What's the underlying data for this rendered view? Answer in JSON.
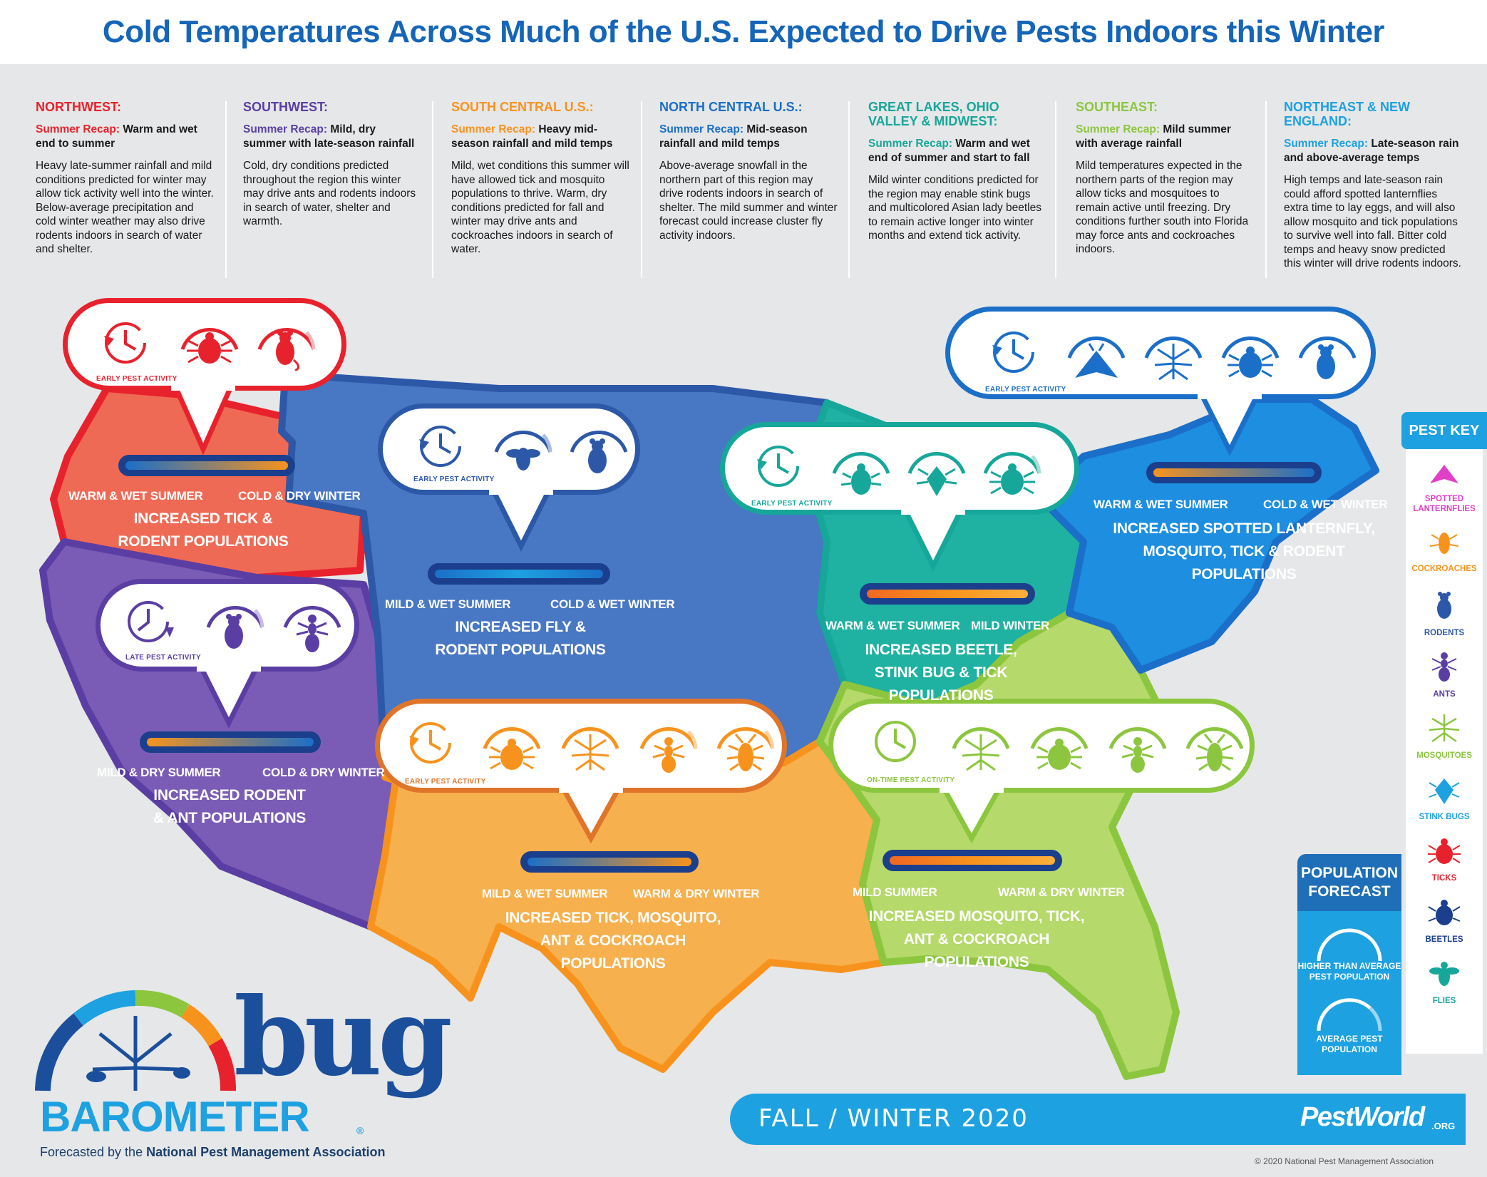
{
  "title": "Cold Temperatures Across Much of the U.S. Expected to Drive Pests Indoors this Winter",
  "colors": {
    "northwest": "#e8222d",
    "southwest": "#5b3ea3",
    "south_central": "#f7931d",
    "north_central": "#2d58a8",
    "great_lakes": "#17a79a",
    "southeast": "#8cc63f",
    "northeast": "#1b6fc8",
    "title_blue": "#1565b8",
    "key_blue": "#1da1e0"
  },
  "regions": [
    {
      "name": "NORTHWEST:",
      "recap_label": "Summer Recap:",
      "recap": "Warm and wet end to summer",
      "desc": "Heavy late-summer rainfall and mild conditions predicted for winter may allow tick activity well into the winter. Below-average precipitation and cold winter weather may also drive rodents indoors in search of water and shelter."
    },
    {
      "name": "SOUTHWEST:",
      "recap_label": "Summer Recap:",
      "recap": "Mild, dry summer with late-season rainfall",
      "desc": "Cold, dry conditions predicted throughout the region this winter may drive ants and rodents indoors in search of water, shelter and warmth."
    },
    {
      "name": "SOUTH CENTRAL U.S.:",
      "recap_label": "Summer Recap:",
      "recap": "Heavy mid-season rainfall and mild temps",
      "desc": "Mild, wet conditions this summer will have allowed tick and mosquito populations to thrive. Warm, dry conditions predicted for fall and winter may drive ants and cockroaches indoors in search of water."
    },
    {
      "name": "NORTH CENTRAL U.S.:",
      "recap_label": "Summer Recap:",
      "recap": "Mid-season rainfall and mild temps",
      "desc": "Above-average snowfall in the northern part of this region may drive rodents indoors in search of shelter. The mild summer and winter forecast could increase cluster fly activity indoors."
    },
    {
      "name": "GREAT LAKES, OHIO VALLEY & MIDWEST:",
      "recap_label": "Summer Recap:",
      "recap": "Warm and wet end of summer and start to fall",
      "desc": "Mild winter conditions predicted for the region may enable stink bugs and multicolored Asian lady beetles to remain active longer into winter months and extend tick activity."
    },
    {
      "name": "SOUTHEAST:",
      "recap_label": "Summer Recap:",
      "recap": "Mild summer with average rainfall",
      "desc": "Mild temperatures expected in the northern parts of the region may allow ticks and mosquitoes to remain active until freezing. Dry conditions further south into Florida may force ants and cockroaches indoors."
    },
    {
      "name": "NORTHEAST & NEW ENGLAND:",
      "recap_label": "Summer Recap:",
      "recap": "Late-season rain and above-average temps",
      "desc": "High temps and late-season rain could afford spotted lanternflies extra time to lay eggs, and will also allow mosquito and tick populations to survive well into fall. Bitter cold temps and heavy snow predicted this winter will drive rodents indoors."
    }
  ],
  "map": {
    "northwest": {
      "activity": "EARLY PEST ACTIVITY",
      "summer": "WARM & WET SUMMER",
      "winter": "COLD & DRY WINTER",
      "result1": "INCREASED TICK &",
      "result2": "RODENT POPULATIONS",
      "pests": [
        "tick",
        "rodent"
      ]
    },
    "southwest": {
      "activity": "LATE PEST ACTIVITY",
      "summer": "MILD & DRY SUMMER",
      "winter": "COLD & DRY WINTER",
      "result1": "INCREASED RODENT",
      "result2": "& ANT POPULATIONS",
      "pests": [
        "rodent",
        "ant"
      ]
    },
    "north_central": {
      "activity": "EARLY PEST ACTIVITY",
      "summer": "MILD & WET SUMMER",
      "winter": "COLD & WET WINTER",
      "result1": "INCREASED FLY &",
      "result2": "RODENT POPULATIONS",
      "pests": [
        "fly",
        "rodent"
      ]
    },
    "great_lakes": {
      "activity": "EARLY PEST ACTIVITY",
      "summer": "WARM & WET SUMMER",
      "winter": "MILD WINTER",
      "result1": "INCREASED BEETLE,",
      "result2": "STINK BUG & TICK POPULATIONS",
      "pests": [
        "beetle",
        "stink bug",
        "tick"
      ]
    },
    "northeast": {
      "activity": "EARLY PEST ACTIVITY",
      "summer": "WARM & WET SUMMER",
      "winter": "COLD & WET WINTER",
      "result1": "INCREASED SPOTTED LANTERNFLY,",
      "result2": "MOSQUITO, TICK & RODENT POPULATIONS",
      "pests": [
        "spotted lanternfly",
        "mosquito",
        "tick",
        "rodent"
      ]
    },
    "south_central": {
      "activity": "EARLY PEST ACTIVITY",
      "summer": "MILD & WET SUMMER",
      "winter": "WARM & DRY WINTER",
      "result1": "INCREASED TICK, MOSQUITO,",
      "result2": "ANT & COCKROACH POPULATIONS",
      "pests": [
        "tick",
        "mosquito",
        "ant",
        "cockroach"
      ]
    },
    "southeast": {
      "activity": "ON-TIME PEST ACTIVITY",
      "summer": "MILD SUMMER",
      "winter": "WARM & DRY WINTER",
      "result1": "INCREASED MOSQUITO, TICK,",
      "result2": "ANT & COCKROACH POPULATIONS",
      "pests": [
        "mosquito",
        "tick",
        "ant",
        "cockroach"
      ]
    }
  },
  "pest_key": {
    "title": "PEST KEY",
    "items": [
      {
        "label": "SPOTTED LANTERNFLIES",
        "color": "#e040c8",
        "icon": "lanternfly-icon"
      },
      {
        "label": "COCKROACHES",
        "color": "#f7931d",
        "icon": "cockroach-icon"
      },
      {
        "label": "RODENTS",
        "color": "#2d58a8",
        "icon": "rodent-icon"
      },
      {
        "label": "ANTS",
        "color": "#5b3ea3",
        "icon": "ant-icon"
      },
      {
        "label": "MOSQUITOES",
        "color": "#8cc63f",
        "icon": "mosquito-icon"
      },
      {
        "label": "STINK BUGS",
        "color": "#1da1e0",
        "icon": "stink-bug-icon"
      },
      {
        "label": "TICKS",
        "color": "#e8222d",
        "icon": "tick-icon"
      },
      {
        "label": "BEETLES",
        "color": "#1b3f8c",
        "icon": "beetle-icon"
      },
      {
        "label": "FLIES",
        "color": "#17a79a",
        "icon": "fly-icon"
      }
    ]
  },
  "population_forecast": {
    "title1": "POPULATION",
    "title2": "FORECAST",
    "higher": "HIGHER THAN AVERAGE PEST POPULATION",
    "average": "AVERAGE PEST POPULATION"
  },
  "footer": {
    "season": "FALL / WINTER 2020",
    "pestworld": "PestWorld",
    "pestworld_suffix": ".ORG",
    "copyright": "© 2020 National Pest Management Association"
  },
  "logo": {
    "bug": "bug",
    "barometer": "BAROMETER",
    "reg": "®",
    "forecasted_prefix": "Forecasted by the",
    "forecasted_org": "National Pest Management Association"
  }
}
